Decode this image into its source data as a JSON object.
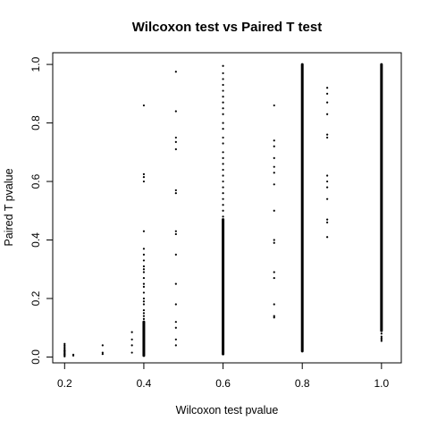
{
  "chart_data": {
    "type": "scatter",
    "title": "Wilcoxon test vs Paired T test",
    "xlabel": "Wilcoxon test pvalue",
    "ylabel": "Paired T pvalue",
    "xlim": [
      0.17,
      1.05
    ],
    "ylim": [
      -0.02,
      1.04
    ],
    "xticks": [
      0.2,
      0.4,
      0.6,
      0.8,
      1.0
    ],
    "xtick_labels": [
      "0.2",
      "0.4",
      "0.6",
      "0.8",
      "1.0"
    ],
    "yticks": [
      0.0,
      0.2,
      0.4,
      0.6,
      0.8,
      1.0
    ],
    "ytick_labels": [
      "0.0",
      "0.2",
      "0.4",
      "0.6",
      "0.8",
      "1.0"
    ],
    "grid": false,
    "marker_color": "#000000",
    "columns": [
      {
        "x": 0.2,
        "y": [
          0.002,
          0.005,
          0.008,
          0.01,
          0.012,
          0.015,
          0.018,
          0.02,
          0.022,
          0.025,
          0.03,
          0.035,
          0.04,
          0.045
        ]
      },
      {
        "x": 0.222,
        "y": [
          0.005,
          0.008
        ]
      },
      {
        "x": 0.296,
        "y": [
          0.01,
          0.015,
          0.04
        ]
      },
      {
        "x": 0.37,
        "y": [
          0.015,
          0.04,
          0.06,
          0.085
        ]
      },
      {
        "x": 0.4,
        "y": [
          0.6,
          0.615,
          0.625,
          0.86,
          0.43,
          0.37,
          0.35,
          0.33,
          0.31,
          0.3,
          0.29,
          0.27,
          0.25,
          0.24,
          0.22,
          0.2,
          0.19,
          0.18,
          0.16,
          0.15,
          0.14,
          0.13
        ],
        "segment": [
          0.005,
          0.12
        ]
      },
      {
        "x": 0.481,
        "y": [
          0.975,
          0.84,
          0.75,
          0.735,
          0.71,
          0.57,
          0.56,
          0.43,
          0.42,
          0.35,
          0.25,
          0.18,
          0.12,
          0.1,
          0.06,
          0.04
        ]
      },
      {
        "x": 0.6,
        "y": [
          0.995,
          0.97,
          0.95,
          0.93,
          0.91,
          0.89,
          0.87,
          0.85,
          0.83,
          0.8,
          0.78,
          0.75,
          0.73,
          0.7,
          0.68,
          0.66,
          0.64,
          0.62,
          0.6,
          0.58,
          0.56,
          0.54,
          0.52,
          0.5,
          0.48
        ],
        "segment": [
          0.01,
          0.47
        ]
      },
      {
        "x": 0.729,
        "y": [
          0.86,
          0.74,
          0.72,
          0.68,
          0.65,
          0.63,
          0.59,
          0.5,
          0.4,
          0.39,
          0.29,
          0.27,
          0.18,
          0.14,
          0.135
        ]
      },
      {
        "x": 0.8,
        "y": [],
        "segment": [
          0.02,
          1.0
        ]
      },
      {
        "x": 0.863,
        "y": [
          0.92,
          0.9,
          0.87,
          0.83,
          0.76,
          0.75,
          0.62,
          0.6,
          0.58,
          0.54,
          0.47,
          0.46,
          0.41
        ]
      },
      {
        "x": 1.0,
        "y": [
          0.055,
          0.06,
          0.065,
          0.07,
          0.08
        ],
        "segment": [
          0.09,
          1.0
        ]
      }
    ]
  }
}
